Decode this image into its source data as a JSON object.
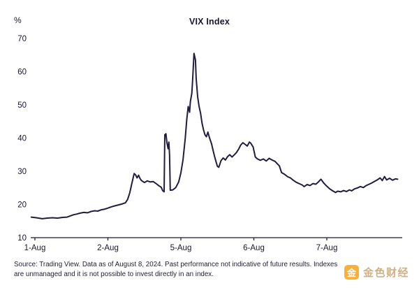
{
  "chart": {
    "title": "VIX Index",
    "y_axis_unit": "%",
    "line_color": "#201d3d",
    "text_color": "#17172c",
    "axis_color": "#17172c"
  },
  "footer": {
    "line1": "Source: Trading View. Data as of August 8, 2024. Past performance not indicative of future results. Indexes",
    "line2": "are unmanaged and it is not possible to invest directly in an index."
  },
  "watermark": {
    "logo_glyph": "金",
    "text": "金色财经",
    "logo_color": "#f7a823",
    "text_color": "#c9a97a"
  },
  "chart_data": {
    "type": "line",
    "title": "VIX Index",
    "xlabel": "",
    "ylabel": "%",
    "ylim": [
      10,
      70
    ],
    "y_ticks": [
      10,
      20,
      30,
      40,
      50,
      60,
      70
    ],
    "x_tick_labels": [
      "1-Aug",
      "2-Aug",
      "5-Aug",
      "6-Aug",
      "7-Aug"
    ],
    "x_tick_positions": [
      0,
      1,
      2,
      3,
      4
    ],
    "grid": false,
    "legend_position": "none",
    "series": [
      {
        "name": "VIX Index",
        "points": [
          [
            -0.05,
            16.2
          ],
          [
            0.02,
            16.0
          ],
          [
            0.1,
            15.7
          ],
          [
            0.17,
            15.9
          ],
          [
            0.24,
            16.0
          ],
          [
            0.31,
            15.9
          ],
          [
            0.38,
            16.1
          ],
          [
            0.44,
            16.2
          ],
          [
            0.48,
            16.5
          ],
          [
            0.53,
            16.9
          ],
          [
            0.57,
            17.1
          ],
          [
            0.62,
            17.4
          ],
          [
            0.67,
            17.6
          ],
          [
            0.72,
            17.5
          ],
          [
            0.77,
            17.9
          ],
          [
            0.82,
            18.1
          ],
          [
            0.86,
            18.0
          ],
          [
            0.91,
            18.4
          ],
          [
            0.96,
            18.6
          ],
          [
            1.0,
            18.9
          ],
          [
            1.05,
            19.3
          ],
          [
            1.1,
            19.6
          ],
          [
            1.15,
            19.9
          ],
          [
            1.2,
            20.2
          ],
          [
            1.24,
            20.5
          ],
          [
            1.27,
            21.5
          ],
          [
            1.3,
            23.5
          ],
          [
            1.33,
            26.5
          ],
          [
            1.36,
            29.3
          ],
          [
            1.38,
            28.9
          ],
          [
            1.4,
            28.0
          ],
          [
            1.42,
            28.8
          ],
          [
            1.44,
            27.8
          ],
          [
            1.46,
            27.2
          ],
          [
            1.5,
            26.6
          ],
          [
            1.54,
            27.1
          ],
          [
            1.58,
            26.8
          ],
          [
            1.62,
            26.9
          ],
          [
            1.66,
            26.3
          ],
          [
            1.7,
            25.6
          ],
          [
            1.73,
            25.2
          ],
          [
            1.75,
            24.2
          ],
          [
            1.77,
            23.8
          ],
          [
            1.78,
            41.0
          ],
          [
            1.795,
            41.3
          ],
          [
            1.81,
            38.5
          ],
          [
            1.825,
            36.8
          ],
          [
            1.835,
            38.8
          ],
          [
            1.845,
            35.0
          ],
          [
            1.855,
            24.3
          ],
          [
            1.89,
            24.4
          ],
          [
            1.93,
            25.1
          ],
          [
            1.97,
            26.8
          ],
          [
            2.0,
            29.5
          ],
          [
            2.03,
            33.5
          ],
          [
            2.06,
            40.0
          ],
          [
            2.08,
            45.5
          ],
          [
            2.1,
            49.5
          ],
          [
            2.12,
            47.8
          ],
          [
            2.13,
            51.0
          ],
          [
            2.15,
            53.5
          ],
          [
            2.16,
            57.0
          ],
          [
            2.18,
            65.5
          ],
          [
            2.2,
            63.5
          ],
          [
            2.21,
            58.0
          ],
          [
            2.23,
            52.5
          ],
          [
            2.25,
            49.5
          ],
          [
            2.27,
            47.5
          ],
          [
            2.29,
            44.5
          ],
          [
            2.31,
            42.5
          ],
          [
            2.33,
            41.0
          ],
          [
            2.35,
            40.4
          ],
          [
            2.37,
            41.8
          ],
          [
            2.39,
            40.2
          ],
          [
            2.42,
            38.3
          ],
          [
            2.44,
            36.4
          ],
          [
            2.46,
            34.6
          ],
          [
            2.48,
            33.0
          ],
          [
            2.5,
            31.5
          ],
          [
            2.52,
            31.2
          ],
          [
            2.55,
            33.2
          ],
          [
            2.58,
            34.0
          ],
          [
            2.61,
            33.4
          ],
          [
            2.64,
            34.4
          ],
          [
            2.67,
            35.0
          ],
          [
            2.7,
            34.3
          ],
          [
            2.73,
            34.9
          ],
          [
            2.76,
            35.6
          ],
          [
            2.79,
            36.6
          ],
          [
            2.82,
            37.9
          ],
          [
            2.85,
            38.6
          ],
          [
            2.88,
            38.1
          ],
          [
            2.91,
            37.6
          ],
          [
            2.94,
            38.8
          ],
          [
            2.96,
            38.4
          ],
          [
            2.99,
            37.3
          ],
          [
            3.02,
            34.3
          ],
          [
            3.05,
            33.7
          ],
          [
            3.09,
            33.3
          ],
          [
            3.13,
            33.7
          ],
          [
            3.17,
            33.1
          ],
          [
            3.21,
            33.9
          ],
          [
            3.25,
            33.4
          ],
          [
            3.29,
            33.0
          ],
          [
            3.32,
            32.3
          ],
          [
            3.35,
            31.6
          ],
          [
            3.38,
            29.6
          ],
          [
            3.42,
            29.1
          ],
          [
            3.46,
            28.4
          ],
          [
            3.5,
            28.0
          ],
          [
            3.54,
            27.3
          ],
          [
            3.58,
            26.7
          ],
          [
            3.62,
            26.3
          ],
          [
            3.66,
            25.9
          ],
          [
            3.69,
            25.4
          ],
          [
            3.73,
            26.0
          ],
          [
            3.77,
            25.7
          ],
          [
            3.81,
            26.3
          ],
          [
            3.85,
            26.1
          ],
          [
            3.88,
            26.7
          ],
          [
            3.92,
            27.6
          ],
          [
            3.96,
            26.4
          ],
          [
            4.0,
            25.5
          ],
          [
            4.04,
            24.7
          ],
          [
            4.08,
            24.1
          ],
          [
            4.12,
            23.6
          ],
          [
            4.15,
            24.0
          ],
          [
            4.19,
            23.8
          ],
          [
            4.23,
            24.2
          ],
          [
            4.27,
            23.9
          ],
          [
            4.31,
            24.4
          ],
          [
            4.34,
            24.1
          ],
          [
            4.38,
            24.7
          ],
          [
            4.42,
            25.0
          ],
          [
            4.46,
            25.4
          ],
          [
            4.5,
            25.1
          ],
          [
            4.54,
            25.7
          ],
          [
            4.57,
            26.0
          ],
          [
            4.61,
            26.4
          ],
          [
            4.65,
            26.9
          ],
          [
            4.69,
            27.4
          ],
          [
            4.73,
            28.0
          ],
          [
            4.76,
            27.2
          ],
          [
            4.79,
            28.4
          ],
          [
            4.82,
            27.4
          ],
          [
            4.86,
            27.9
          ],
          [
            4.9,
            27.3
          ],
          [
            4.94,
            27.7
          ],
          [
            4.97,
            27.6
          ]
        ]
      }
    ]
  }
}
